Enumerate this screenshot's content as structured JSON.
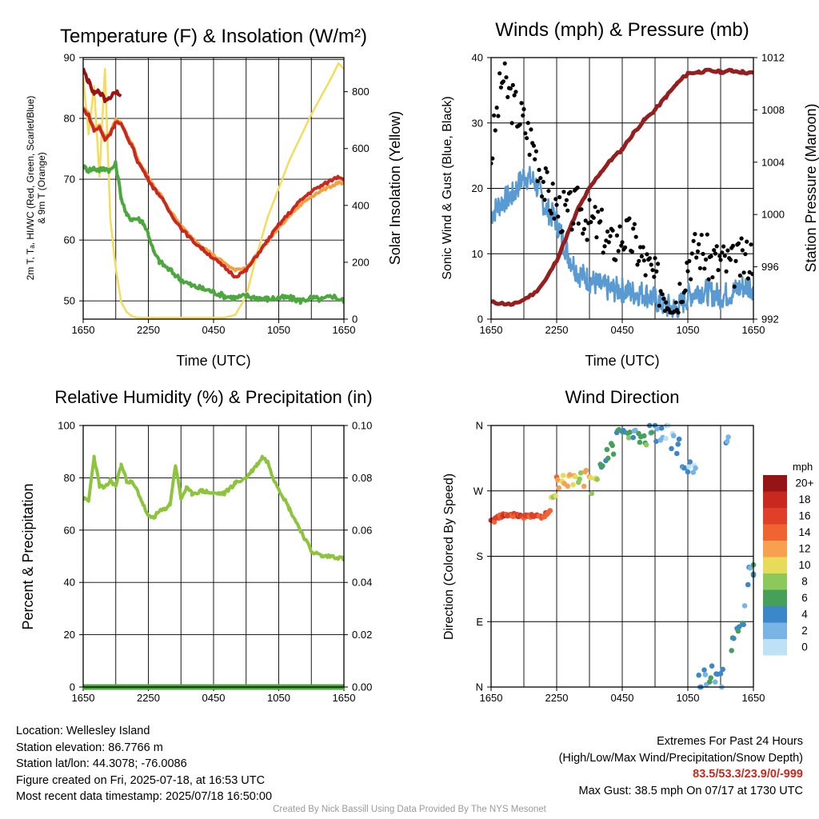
{
  "panels": {
    "temp": {
      "title": "Temperature (F) & Insolation (W/m²)",
      "ylabel_left_line1": "2m T, Tₐ, HI/WC (Red, Green, Scarlet/Blue)",
      "ylabel_left_line2": "& 9m T (Orange)",
      "ylabel_right": "Solar Insolation (Yellow)",
      "xlabel": "Time (UTC)"
    },
    "wind": {
      "title": "Winds (mph) & Pressure (mb)",
      "ylabel_left": "Sonic Wind & Gust (Blue, Black)",
      "ylabel_right": "Station Pressure (Maroon)",
      "xlabel": "Time (UTC)"
    },
    "rh": {
      "title": "Relative Humidity (%) & Precipitation (in)",
      "ylabel_left": "Percent & Precipitation"
    },
    "dir": {
      "title": "Wind Direction",
      "ylabel_left": "Direction (Colored By Speed)",
      "legend_title": "mph"
    }
  },
  "info": {
    "location": "Location: Wellesley Island",
    "elevation": "Station elevation: 86.7766 m",
    "latlon": "Station lat/lon: 44.3078; -76.0086",
    "created": "Figure created on Fri, 2025-07-18, at 16:53 UTC",
    "recent": "Most recent data timestamp: 2025/07/18 16:50:00"
  },
  "extremes": {
    "title": "Extremes For Past 24 Hours",
    "subtitle": "(High/Low/Max Wind/Precipitation/Snow Depth)",
    "values": "83.5/53.3/23.9/0/-999",
    "gust": "Max Gust: 38.5 mph On 07/17 at 1730 UTC"
  },
  "credit": "Created By Nick Bassill Using Data Provided By The NYS Mesonet",
  "colors": {
    "temp": "#c8281e",
    "temp9m": "#f4a040",
    "dewpoint": "#4aa83c",
    "heatindex": "#9b1414",
    "insolation": "#f5dc5a",
    "wind": "#5a9ad2",
    "gust": "#000000",
    "pressure": "#961e1e",
    "rh": "#8cc43c",
    "precip": "#4aa83c"
  },
  "chart_data": [
    {
      "id": "temp",
      "type": "line",
      "title": "Temperature (F) & Insolation (W/m²)",
      "xlabel": "Time (UTC)",
      "x_ticks": [
        "1650",
        "2250",
        "0450",
        "1050",
        "1650"
      ],
      "ylim_left": [
        47,
        90
      ],
      "yticks_left": [
        50,
        60,
        70,
        80,
        90
      ],
      "ylim_right": [
        0,
        920
      ],
      "yticks_right": [
        0,
        200,
        400,
        600,
        800
      ],
      "grid": true,
      "x_hours": [
        0,
        0.5,
        1,
        1.5,
        2,
        2.5,
        3,
        3.5,
        4,
        4.5,
        5,
        5.5,
        6,
        6.5,
        7,
        8,
        9,
        10,
        11,
        12,
        13,
        14,
        15,
        16,
        17,
        18,
        19,
        20,
        21,
        22,
        23,
        23.5,
        24
      ],
      "series": [
        {
          "name": "2m T",
          "color_key": "temp",
          "axis": "left",
          "values": [
            81.5,
            80.5,
            78,
            78.5,
            76.5,
            77.5,
            79.5,
            79,
            77,
            75.5,
            73,
            71.5,
            70,
            68.5,
            67.5,
            64.5,
            62,
            60,
            58.5,
            57,
            55.5,
            54,
            55,
            57.5,
            60,
            62.5,
            64.5,
            66.5,
            68,
            69,
            70,
            70.5,
            70
          ]
        },
        {
          "name": "9m T",
          "color_key": "temp9m",
          "axis": "left",
          "values": [
            81.8,
            80.8,
            78.3,
            78.7,
            76.8,
            77.8,
            79.8,
            79.3,
            77.3,
            75.8,
            73.3,
            71.8,
            70.3,
            68.8,
            67.8,
            64.8,
            62.3,
            60.4,
            58.9,
            57.5,
            56.2,
            55,
            55.5,
            57.6,
            59.8,
            62,
            64,
            65.8,
            67.2,
            68.2,
            69,
            69.5,
            69.3
          ]
        },
        {
          "name": "Dewpoint",
          "color_key": "dewpoint",
          "axis": "left",
          "values": [
            72,
            71.5,
            71.8,
            71.5,
            71.8,
            71.5,
            72.5,
            67,
            64,
            63.5,
            63.5,
            63,
            61,
            58,
            56.5,
            55,
            53.5,
            52.5,
            52,
            51.5,
            50.8,
            50.5,
            50.8,
            50.5,
            50.3,
            50.5,
            50.5,
            50,
            50.5,
            50.2,
            50.8,
            50.3,
            50
          ]
        },
        {
          "name": "Heat Index",
          "color_key": "heatindex",
          "axis": "left",
          "values": [
            88,
            86,
            84,
            84.5,
            83,
            83.5,
            84.5,
            84,
            null
          ]
        },
        {
          "name": "Solar Insolation",
          "color_key": "insolation",
          "axis": "right",
          "values": [
            850,
            650,
            820,
            500,
            880,
            350,
            180,
            60,
            25,
            10,
            5,
            5,
            5,
            5,
            5,
            5,
            5,
            5,
            5,
            5,
            5,
            15,
            80,
            230,
            360,
            460,
            560,
            640,
            720,
            790,
            860,
            900,
            880
          ]
        }
      ]
    },
    {
      "id": "wind",
      "type": "line",
      "title": "Winds (mph) & Pressure (mb)",
      "xlabel": "Time (UTC)",
      "x_ticks": [
        "1650",
        "2250",
        "0450",
        "1050",
        "1650"
      ],
      "ylim_left": [
        0,
        40
      ],
      "yticks_left": [
        0,
        10,
        20,
        30,
        40
      ],
      "ylim_right": [
        992,
        1012
      ],
      "yticks_right": [
        992,
        996,
        1000,
        1004,
        1008,
        1012
      ],
      "grid": true,
      "x_hours": [
        0,
        1,
        2,
        3,
        4,
        5,
        6,
        7,
        8,
        9,
        10,
        11,
        12,
        13,
        14,
        15,
        16,
        17,
        18,
        19,
        20,
        21,
        22,
        23,
        24
      ],
      "series": [
        {
          "name": "Sonic Wind",
          "color_key": "wind",
          "axis": "left",
          "values": [
            16,
            18,
            19,
            22,
            21,
            17,
            15,
            10,
            7,
            6,
            5,
            4.5,
            4.5,
            4,
            4,
            3,
            2,
            1.5,
            3.5,
            4.5,
            4,
            3.5,
            4,
            5,
            5
          ]
        },
        {
          "name": "Gust",
          "color_key": "gust",
          "axis": "left",
          "values": [
            25,
            37,
            33,
            30,
            26,
            20,
            17,
            16,
            17,
            15,
            14,
            11,
            13,
            12,
            9,
            6,
            4,
            3,
            9,
            11,
            9,
            9,
            8,
            9,
            10
          ]
        },
        {
          "name": "Station Pressure",
          "color_key": "pressure",
          "axis": "right",
          "values": [
            993.3,
            993.2,
            993.1,
            993.5,
            994.0,
            995.0,
            996.5,
            998.5,
            1000.5,
            1002.0,
            1003.2,
            1004.2,
            1005.0,
            1006.2,
            1007.2,
            1008.0,
            1009.0,
            1010.0,
            1010.8,
            1010.9,
            1011.0,
            1010.9,
            1011.0,
            1010.9,
            1010.8
          ]
        }
      ]
    },
    {
      "id": "rh",
      "type": "line",
      "title": "Relative Humidity (%) & Precipitation (in)",
      "x_ticks": [
        "1650",
        "2250",
        "0450",
        "1050",
        "1650"
      ],
      "ylim_left": [
        0,
        100
      ],
      "yticks_left": [
        0,
        20,
        40,
        60,
        80,
        100
      ],
      "ylim_right": [
        0,
        0.1
      ],
      "yticks_right": [
        "0.00",
        "0.02",
        "0.04",
        "0.06",
        "0.08",
        "0.10"
      ],
      "grid": true,
      "x_hours": [
        0,
        0.5,
        1,
        1.5,
        2,
        2.5,
        3,
        3.5,
        4,
        4.5,
        5,
        5.5,
        6,
        6.5,
        7,
        7.5,
        8,
        8.5,
        9,
        9.5,
        10,
        11,
        12,
        13,
        14,
        15,
        16,
        16.5,
        17,
        17.5,
        18,
        19,
        20,
        21,
        22,
        23,
        24
      ],
      "series": [
        {
          "name": "Relative Humidity",
          "color_key": "rh",
          "axis": "left",
          "values": [
            72,
            71,
            88,
            77,
            76,
            79,
            77,
            85,
            79,
            78,
            75,
            70,
            65,
            65,
            67,
            68,
            70,
            85,
            72,
            76,
            74,
            75,
            74,
            74,
            78,
            80,
            85,
            88,
            86,
            80,
            76,
            68,
            60,
            52,
            50,
            50,
            49
          ]
        },
        {
          "name": "Precipitation",
          "color_key": "precip",
          "axis": "right",
          "values": [
            0,
            0
          ]
        }
      ]
    },
    {
      "id": "dir",
      "type": "scatter",
      "title": "Wind Direction",
      "x_ticks": [
        "1650",
        "2250",
        "0450",
        "1050",
        "1650"
      ],
      "yticks": [
        "N",
        "E",
        "S",
        "W",
        "N"
      ],
      "ylim": [
        0,
        360
      ],
      "grid": true,
      "legend": {
        "title": "mph",
        "position": "right",
        "labels": [
          "20+",
          "18",
          "16",
          "14",
          "12",
          "10",
          "8",
          "6",
          "4",
          "2",
          "0"
        ],
        "colors": [
          "#961414",
          "#c8281e",
          "#e0402a",
          "#f06432",
          "#f7a050",
          "#e6dc5a",
          "#8cc85a",
          "#46a05a",
          "#3c87c8",
          "#78b4e6",
          "#bee1f5"
        ]
      },
      "points_hours": [
        0,
        0.5,
        1,
        1.5,
        2,
        2.5,
        3,
        3.5,
        4,
        4.5,
        5,
        5.5,
        6,
        6.5,
        7,
        7.5,
        8,
        8.5,
        9,
        9.5,
        10,
        10.5,
        11,
        11.5,
        12,
        12.5,
        13,
        13.5,
        14,
        14.5,
        15,
        15.5,
        16,
        16.5,
        17,
        17.5,
        18,
        18.5,
        19,
        19.5,
        20,
        20.5,
        21,
        21.5,
        22,
        22.5,
        23,
        23.5,
        24
      ],
      "direction_deg": [
        230,
        235,
        236,
        235,
        237,
        236,
        235,
        236,
        238,
        235,
        240,
        262,
        282,
        290,
        281,
        284,
        282,
        285,
        280,
        283,
        292,
        320,
        330,
        345,
        350,
        345,
        350,
        340,
        345,
        355,
        350,
        345,
        350,
        342,
        335,
        300,
        310,
        290,
        5,
        10,
        15,
        20,
        10,
        330,
        60,
        80,
        100,
        150,
        165
      ],
      "speed_mph": [
        16,
        15,
        16,
        15,
        15,
        16,
        16,
        15,
        15,
        15,
        14,
        9,
        12,
        11,
        11,
        10,
        9,
        12,
        10,
        10,
        6,
        5,
        6,
        4,
        5,
        7,
        3,
        5,
        6,
        4,
        2,
        3,
        1,
        2,
        4,
        3,
        2,
        1,
        3,
        4,
        5,
        3,
        4,
        3,
        6,
        5,
        4,
        3,
        5
      ]
    }
  ]
}
